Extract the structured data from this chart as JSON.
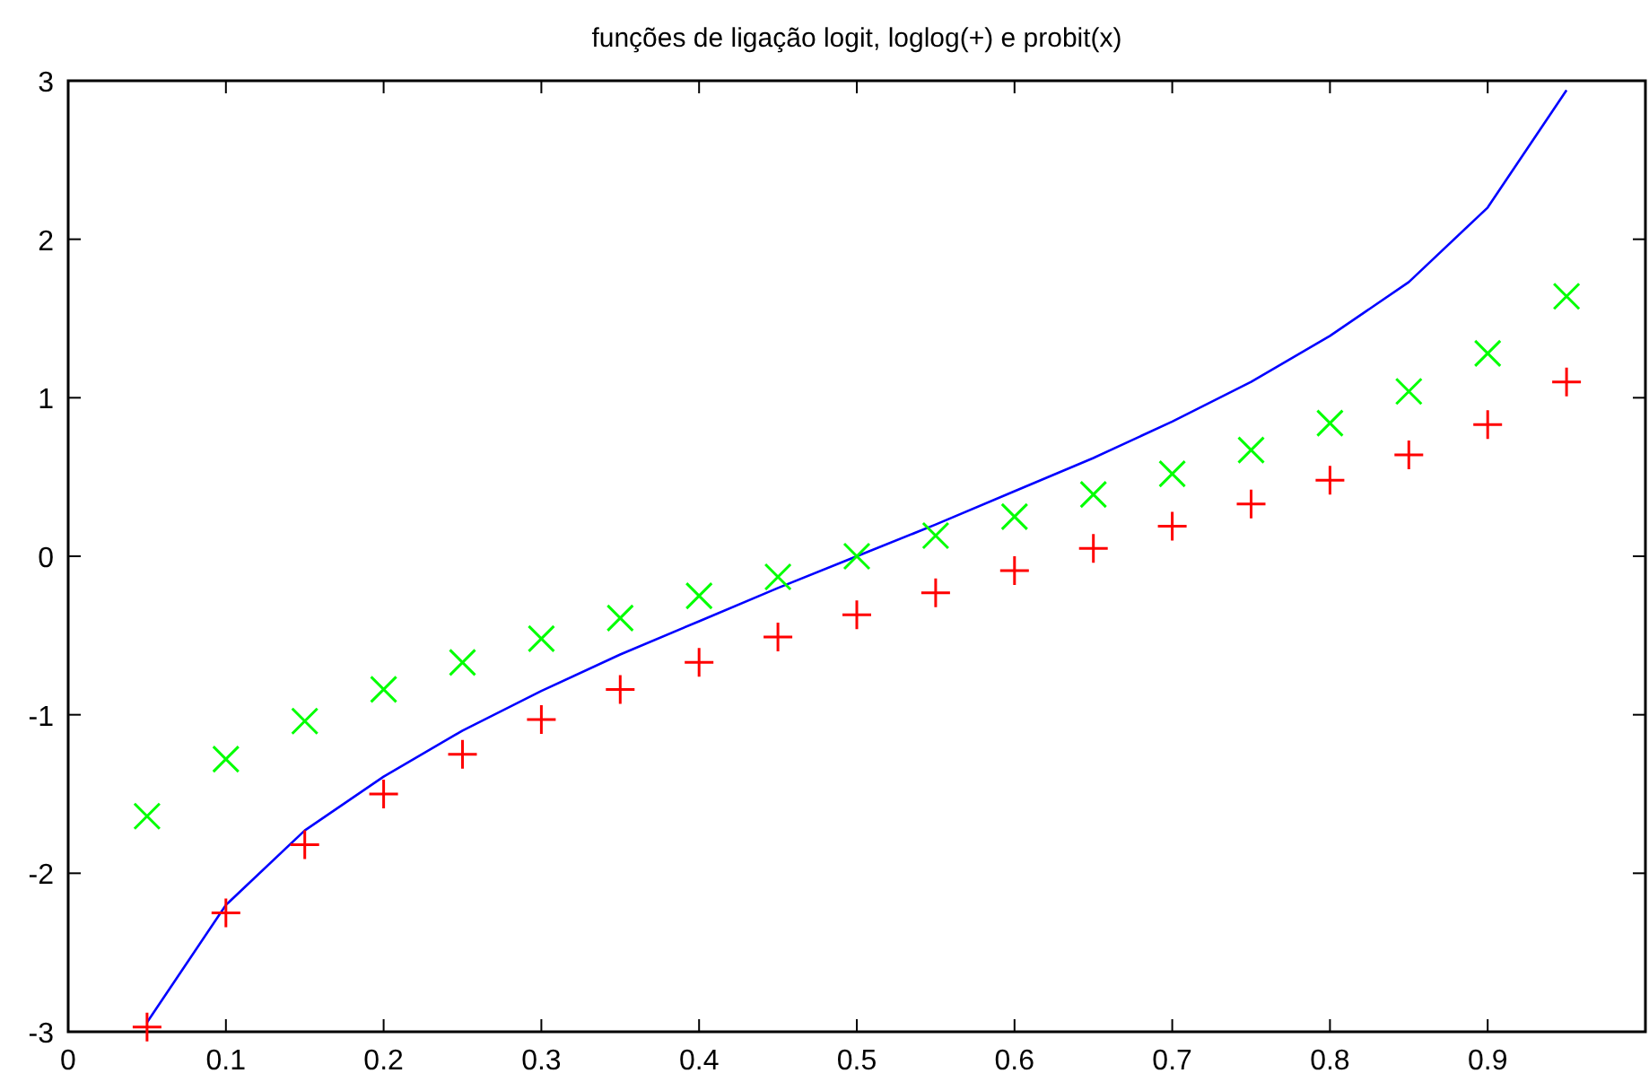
{
  "chart_data": {
    "type": "line",
    "title": "funções de ligação logit, loglog(+) e probit(x)",
    "x": [
      0.05,
      0.1,
      0.15,
      0.2,
      0.25,
      0.3,
      0.35,
      0.4,
      0.45,
      0.5,
      0.55,
      0.6,
      0.65,
      0.7,
      0.75,
      0.8,
      0.85,
      0.9,
      0.95
    ],
    "series": [
      {
        "color": "#0000ff",
        "marker": "none",
        "values": [
          -2.94,
          -2.2,
          -1.73,
          -1.39,
          -1.1,
          -0.85,
          -0.62,
          -0.41,
          -0.2,
          0,
          0.2,
          0.41,
          0.62,
          0.85,
          1.1,
          1.39,
          1.73,
          2.2,
          2.94
        ]
      },
      {
        "type": "scatter",
        "color": "#ff0000",
        "marker": "cross",
        "values": [
          -2.97,
          -2.25,
          -1.82,
          -1.5,
          -1.25,
          -1.03,
          -0.84,
          -0.67,
          -0.51,
          -0.37,
          -0.23,
          -0.09,
          0.05,
          0.19,
          0.33,
          0.48,
          0.64,
          0.83,
          1.1
        ]
      },
      {
        "type": "scatter",
        "color": "#00ff00",
        "marker": "x",
        "values": [
          -1.64,
          -1.28,
          -1.04,
          -0.84,
          -0.67,
          -0.52,
          -0.39,
          -0.25,
          -0.13,
          0,
          0.13,
          0.25,
          0.39,
          0.52,
          0.67,
          0.84,
          1.04,
          1.28,
          1.64
        ]
      }
    ],
    "xlim": [
      0,
      1
    ],
    "xticks": [
      0,
      0.1,
      0.2,
      0.3,
      0.4,
      0.5,
      0.6,
      0.7,
      0.8,
      0.9
    ],
    "ylim": [
      -3,
      3
    ],
    "yticks": [
      -3,
      -2,
      -1,
      0,
      1,
      2,
      3
    ],
    "grid": false
  }
}
